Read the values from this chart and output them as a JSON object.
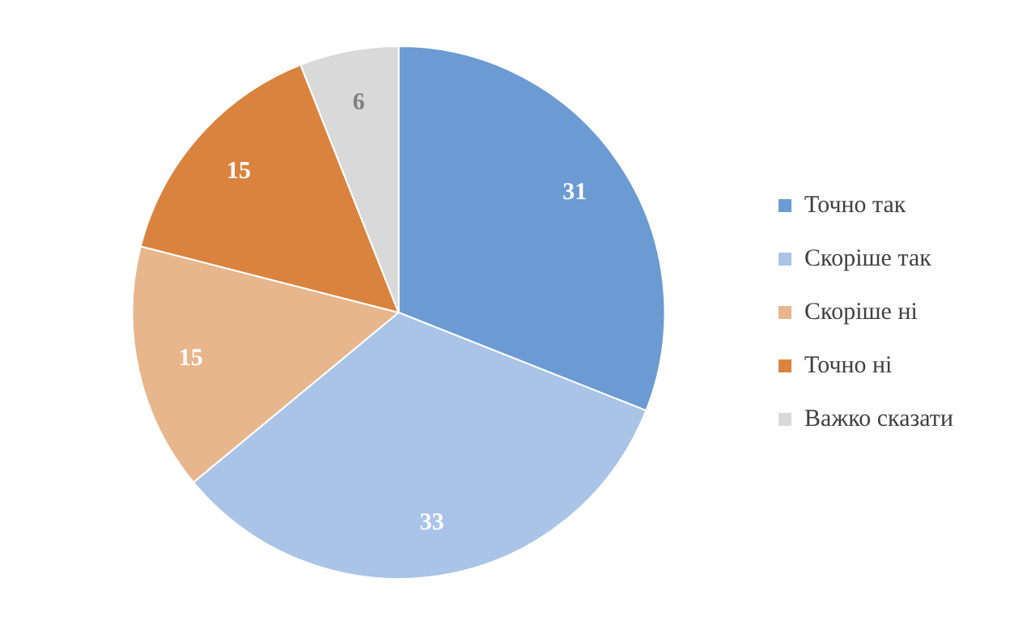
{
  "chart_data": {
    "type": "pie",
    "categories": [
      "Точно так",
      "Скоріше так",
      "Скоріше ні",
      "Точно ні",
      "Важко сказати"
    ],
    "values": [
      31,
      33,
      15,
      15,
      6
    ],
    "colors": [
      "#6b9bd2",
      "#a9c4e6",
      "#e8b68c",
      "#d9833f",
      "#d9d9d9"
    ],
    "data_labels": true,
    "legend": "right"
  }
}
